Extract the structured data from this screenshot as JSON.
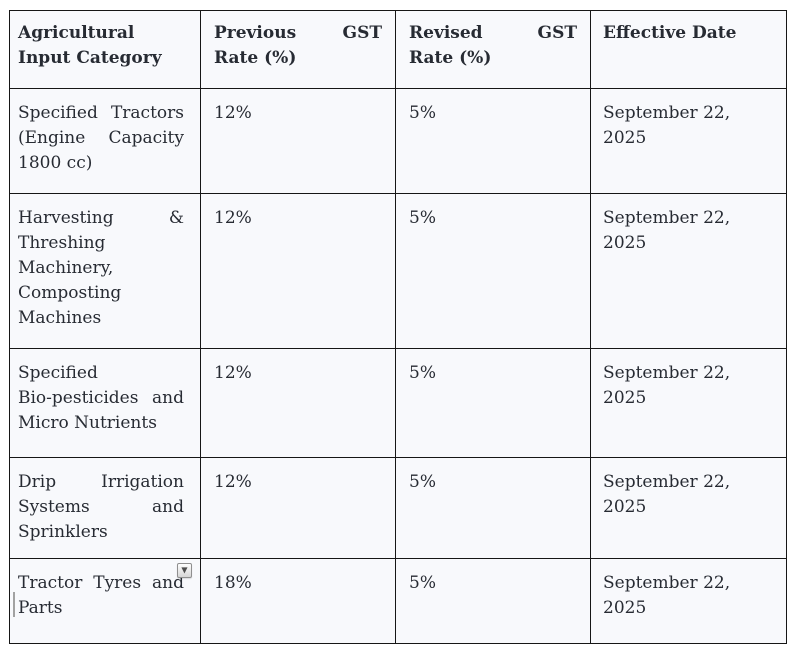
{
  "colors": {
    "page_background": "#ffffff",
    "cell_background": "#f8f9fc",
    "border": "#161616",
    "text": "#272b33",
    "caret": "#a2a2a2"
  },
  "icons": {
    "chevron_down": "▼"
  },
  "table": {
    "columns": [
      {
        "label": "Agricultural Input Category",
        "label_lines": [
          "Agricultural",
          "Input Category"
        ]
      },
      {
        "label": "Previous GST Rate (%)",
        "label_lines": [
          "Previous GST",
          "Rate (%)"
        ]
      },
      {
        "label": "Revised GST Rate (%)",
        "label_lines": [
          "Revised GST",
          "Rate (%)"
        ]
      },
      {
        "label": "Effective Date",
        "label_lines": [
          "Effective Date"
        ]
      }
    ],
    "rows": [
      {
        "category": "Specified Tractors (Engine Capacity 1800 cc)",
        "category_lines": [
          "Specified Tractors",
          "(Engine Capacity",
          "1800 cc)"
        ],
        "previous_gst": "12%",
        "revised_gst": "5%",
        "effective_date": "September 22, 2025"
      },
      {
        "category": "Harvesting & Threshing Machinery, Composting Machines",
        "category_lines": [
          "Harvesting &",
          "Threshing",
          "Machinery,",
          "Composting",
          "Machines"
        ],
        "previous_gst": "12%",
        "revised_gst": "5%",
        "effective_date": "September 22, 2025"
      },
      {
        "category": "Specified Bio-pesticides and Micro Nutrients",
        "category_lines": [
          "Specified",
          "Bio-pesticides and",
          "Micro Nutrients"
        ],
        "previous_gst": "12%",
        "revised_gst": "5%",
        "effective_date": "September 22, 2025"
      },
      {
        "category": "Drip Irrigation Systems and Sprinklers",
        "category_lines": [
          "Drip Irrigation",
          "Systems and",
          "Sprinklers"
        ],
        "previous_gst": "12%",
        "revised_gst": "5%",
        "effective_date": "September 22, 2025"
      },
      {
        "category": "Tractor Tyres and Parts",
        "category_lines": [
          "Tractor Tyres and",
          "Parts"
        ],
        "previous_gst": "18%",
        "revised_gst": "5%",
        "effective_date": "September 22, 2025"
      }
    ]
  }
}
